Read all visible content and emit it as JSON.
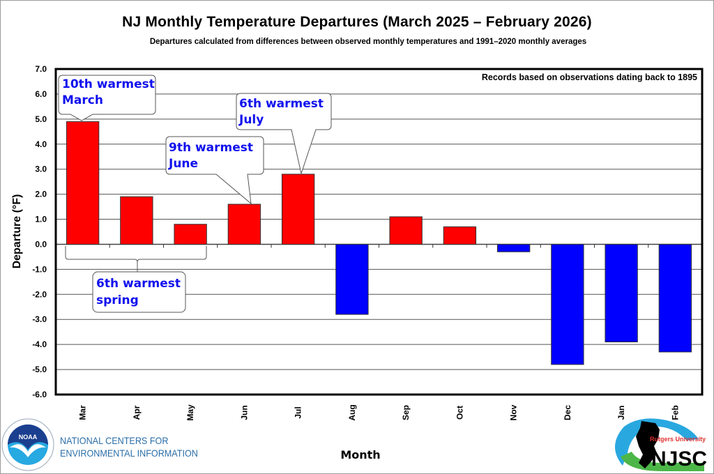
{
  "chart_data": {
    "type": "bar",
    "title": "NJ Monthly  Temperature  Departures (March 2025 – February 2026)",
    "subtitle": "Departures calculated from differences between observed monthly temperatures and 1991–2020  monthly averages",
    "xlabel": "Month",
    "ylabel": "Departure (°F)",
    "ylim": [
      -6.0,
      7.0
    ],
    "yticks": [
      "7.0",
      "6.0",
      "5.0",
      "4.0",
      "3.0",
      "2.0",
      "1.0",
      "0.0",
      "-1.0",
      "-2.0",
      "-3.0",
      "-4.0",
      "-5.0",
      "-6.0"
    ],
    "ytick_values": [
      7,
      6,
      5,
      4,
      3,
      2,
      1,
      0,
      -1,
      -2,
      -3,
      -4,
      -5,
      -6
    ],
    "grid": true,
    "categories": [
      "Mar",
      "Apr",
      "May",
      "Jun",
      "Jul",
      "Aug",
      "Sep",
      "Oct",
      "Nov",
      "Dec",
      "Jan",
      "Feb"
    ],
    "values": [
      4.9,
      1.9,
      0.8,
      1.6,
      2.8,
      -2.8,
      1.1,
      0.7,
      -0.3,
      -4.8,
      -3.9,
      -4.3
    ],
    "colors": {
      "positive": "#ff0000",
      "negative": "#0000ff",
      "callout_text": "#1010ee"
    },
    "note": "Records based on observations dating back to 1895",
    "annotations": [
      {
        "lines": [
          "10th warmest",
          "March"
        ],
        "target": "Mar"
      },
      {
        "lines": [
          "9th warmest",
          "June"
        ],
        "target": "Jun"
      },
      {
        "lines": [
          "6th warmest",
          "July"
        ],
        "target": "Jul"
      },
      {
        "lines": [
          "6th warmest",
          "spring"
        ],
        "target": [
          "Mar",
          "Apr",
          "May"
        ]
      }
    ]
  },
  "logos": {
    "noaa": {
      "label": "NOAA",
      "text_line1": "NATIONAL CENTERS FOR",
      "text_line2": "ENVIRONMENTAL INFORMATION"
    },
    "njsc": {
      "label": "NJSC",
      "sub": "Rutgers University"
    }
  }
}
